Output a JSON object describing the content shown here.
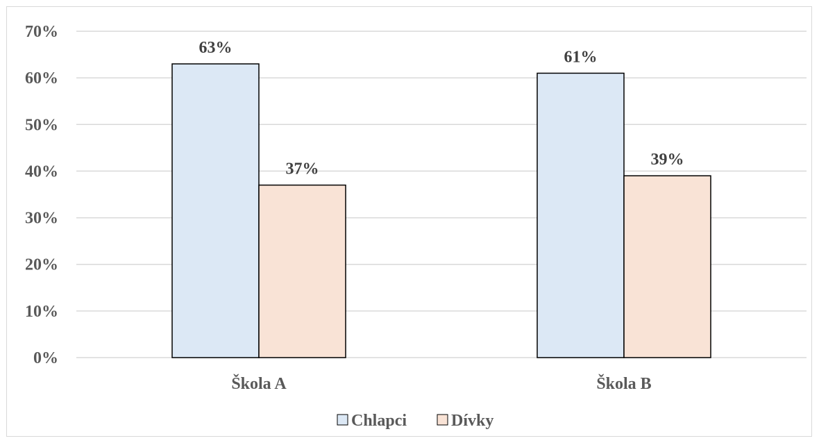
{
  "chart_data": {
    "type": "bar",
    "categories": [
      "Škola A",
      "Škola B"
    ],
    "series": [
      {
        "name": "Chlapci",
        "values": [
          63,
          61
        ],
        "color": "#dce8f5"
      },
      {
        "name": "Dívky",
        "values": [
          37,
          39
        ],
        "color": "#f9e3d6"
      }
    ],
    "data_labels": [
      [
        "63%",
        "61%"
      ],
      [
        "37%",
        "39%"
      ]
    ],
    "ylim": [
      0,
      70
    ],
    "yticks": [
      0,
      10,
      20,
      30,
      40,
      50,
      60,
      70
    ],
    "ytick_labels": [
      "0%",
      "10%",
      "20%",
      "30%",
      "40%",
      "50%",
      "60%",
      "70%"
    ],
    "title": "",
    "xlabel": "",
    "ylabel": "",
    "grid": true,
    "legend_position": "bottom",
    "bar_outline_color": "#000000",
    "grid_color": "#d9d9d9"
  }
}
